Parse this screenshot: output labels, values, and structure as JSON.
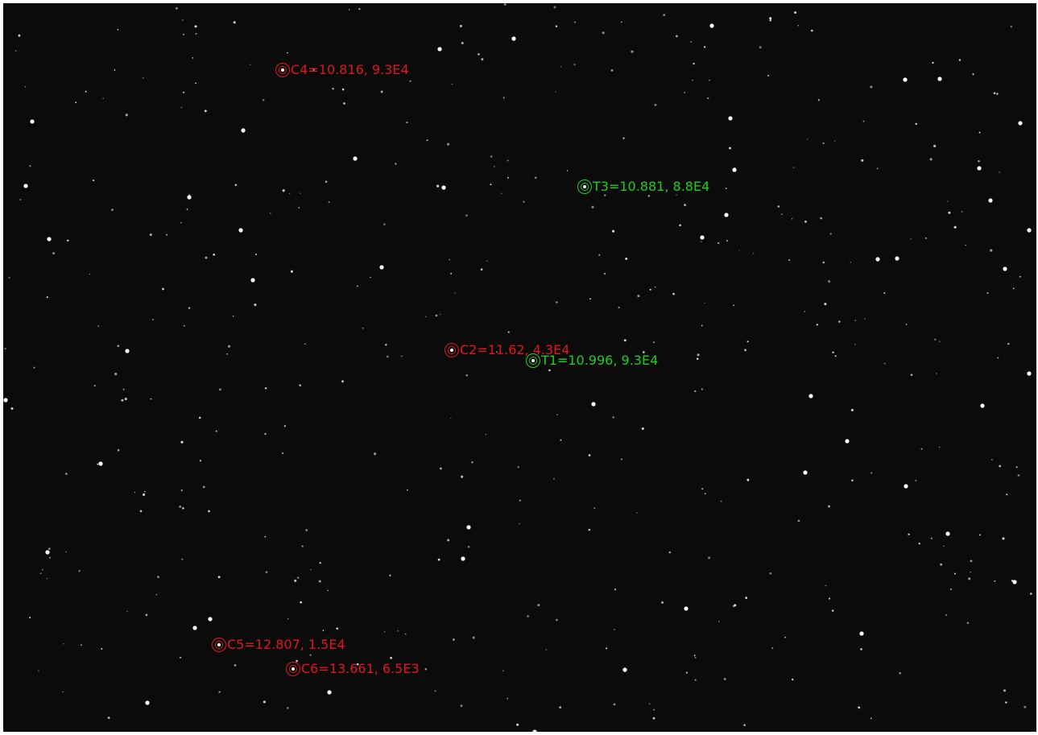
{
  "colors": {
    "comparison": "#e0181e",
    "target": "#19d219",
    "sky": "#0b0b0b"
  },
  "markers": [
    {
      "id": "C4",
      "kind": "comparison",
      "label": "C4=10.816, 9.3E4"
    },
    {
      "id": "T3",
      "kind": "target",
      "label": "T3=10.881, 8.8E4"
    },
    {
      "id": "C2",
      "kind": "comparison",
      "label": "C2=11.62, 4.3E4"
    },
    {
      "id": "T1",
      "kind": "target",
      "label": "T1=10.996, 9.3E4"
    },
    {
      "id": "C5",
      "kind": "comparison",
      "label": "C5=12.807, 1.5E4"
    },
    {
      "id": "C6",
      "kind": "comparison",
      "label": "C6=13.661, 6.5E3"
    }
  ]
}
